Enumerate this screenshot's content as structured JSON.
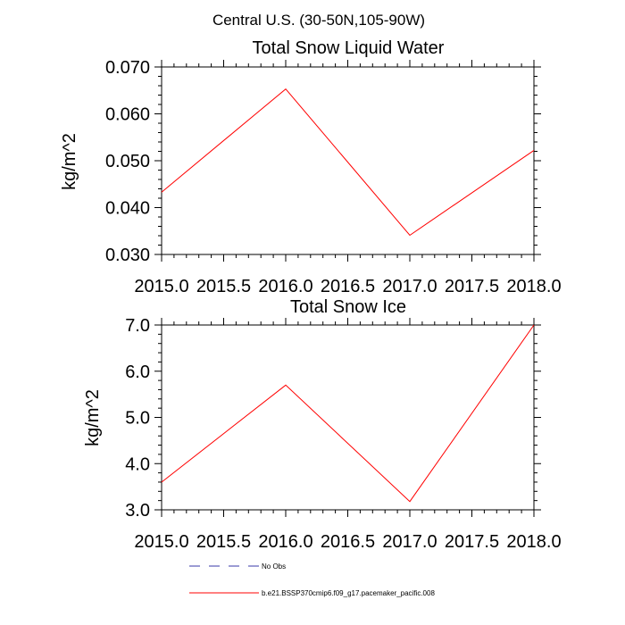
{
  "figure_title": "Central U.S. (30-50N,105-90W)",
  "legend": {
    "entries": [
      {
        "label": "No Obs",
        "color": "#3a3aa8",
        "style": "dashed"
      },
      {
        "label": "b.e21.BSSP370cmip6.f09_g17.pacemaker_pacific.008",
        "color": "#ff0000",
        "style": "solid"
      }
    ]
  },
  "chart_data": [
    {
      "type": "line",
      "title": "Total Snow Liquid Water",
      "ylabel": "kg/m^2",
      "xlim": [
        2015.0,
        2018.0
      ],
      "ylim": [
        0.03,
        0.07
      ],
      "x_ticks": [
        "2015.0",
        "2015.5",
        "2016.0",
        "2016.5",
        "2017.0",
        "2017.5",
        "2018.0"
      ],
      "y_ticks": [
        "0.030",
        "0.040",
        "0.050",
        "0.060",
        "0.070"
      ],
      "grid": false,
      "series": [
        {
          "color": "#ff0000",
          "x": [
            2015.0,
            2016.0,
            2017.0,
            2018.0
          ],
          "y": [
            0.0433,
            0.0653,
            0.0341,
            0.0522
          ]
        }
      ]
    },
    {
      "type": "line",
      "title": "Total Snow Ice",
      "ylabel": "kg/m^2",
      "xlim": [
        2015.0,
        2018.0
      ],
      "ylim": [
        3.0,
        7.0
      ],
      "x_ticks": [
        "2015.0",
        "2015.5",
        "2016.0",
        "2016.5",
        "2017.0",
        "2017.5",
        "2018.0"
      ],
      "y_ticks": [
        "3.0",
        "4.0",
        "5.0",
        "6.0",
        "7.0"
      ],
      "grid": false,
      "series": [
        {
          "color": "#ff0000",
          "x": [
            2015.0,
            2016.0,
            2017.0,
            2018.0
          ],
          "y": [
            3.6,
            5.7,
            3.18,
            7.0
          ]
        }
      ]
    }
  ]
}
